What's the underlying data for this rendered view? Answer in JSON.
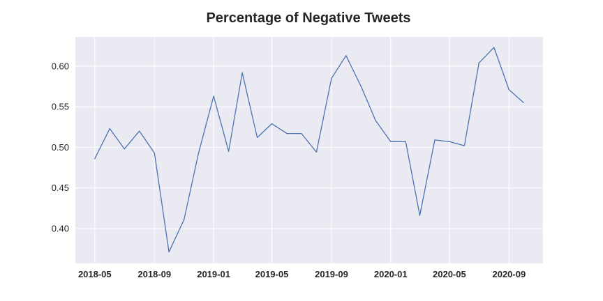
{
  "chart_data": {
    "type": "line",
    "title": "Percentage of Negative Tweets",
    "xlabel": "",
    "ylabel": "",
    "x": [
      "2018-05",
      "2018-06",
      "2018-07",
      "2018-08",
      "2018-09",
      "2018-10",
      "2018-11",
      "2018-12",
      "2019-01",
      "2019-02",
      "2019-03",
      "2019-04",
      "2019-05",
      "2019-06",
      "2019-07",
      "2019-08",
      "2019-09",
      "2019-10",
      "2019-11",
      "2019-12",
      "2020-01",
      "2020-02",
      "2020-03",
      "2020-04",
      "2020-05",
      "2020-06",
      "2020-07",
      "2020-08",
      "2020-09",
      "2020-10"
    ],
    "series": [
      {
        "values": [
          0.486,
          0.523,
          0.498,
          0.52,
          0.493,
          0.371,
          0.411,
          0.493,
          0.563,
          0.495,
          0.592,
          0.512,
          0.529,
          0.517,
          0.517,
          0.494,
          0.585,
          0.613,
          0.575,
          0.533,
          0.507,
          0.507,
          0.416,
          0.509,
          0.507,
          0.502,
          0.604,
          0.623,
          0.571,
          0.555
        ],
        "color": "#4c72b0"
      }
    ],
    "xticks": [
      "2018-05",
      "2018-09",
      "2019-01",
      "2019-05",
      "2019-09",
      "2020-01",
      "2020-05",
      "2020-09"
    ],
    "yticks": [
      0.4,
      0.45,
      0.5,
      0.55,
      0.6
    ],
    "ytick_labels": [
      "0.40",
      "0.45",
      "0.50",
      "0.55",
      "0.60"
    ],
    "ylim": [
      0.357,
      0.636
    ],
    "xlim": [
      "2018-03-22",
      "2020-11-10"
    ],
    "grid": true,
    "legend": "none",
    "background": "#eaeaf2",
    "grid_color": "#ffffff"
  }
}
